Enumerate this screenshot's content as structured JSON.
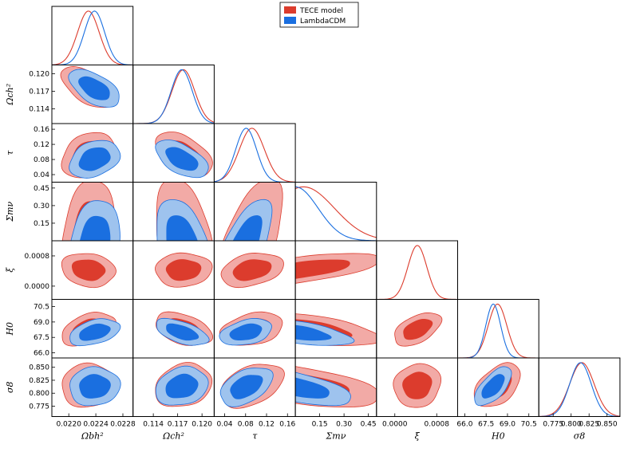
{
  "chart_data": {
    "type": "triangle-plot",
    "legend": {
      "placement": "top-center",
      "entries": [
        {
          "name": "TECE model",
          "color": "#dc3c2d"
        },
        {
          "name": "LambdaCDM",
          "color": "#1a6fe0"
        }
      ]
    },
    "colors": {
      "tece_inner": "#dc3c2d",
      "tece_outer": "#f2aaa6",
      "lcdm_inner": "#1a6fe0",
      "lcdm_outer": "#9ec3ee",
      "tece_line": "#dc3c2d",
      "lcdm_line": "#1a6fe0"
    },
    "parameters": [
      {
        "name": "omega_b",
        "label": "Ωbh²",
        "range": [
          0.02175,
          0.02295
        ],
        "ticks": [
          "0.0220",
          "0.0224",
          "0.0228"
        ],
        "tick_values": [
          0.022,
          0.0224,
          0.0228
        ],
        "tece": {
          "mean": 0.02229,
          "sigma": 0.00016
        },
        "lcdm": {
          "mean": 0.02238,
          "sigma": 0.00015
        }
      },
      {
        "name": "omega_c",
        "label": "Ωch²",
        "range": [
          0.1115,
          0.1215
        ],
        "ticks": [
          "0.114",
          "0.117",
          "0.120"
        ],
        "tick_values": [
          0.114,
          0.117,
          0.12
        ],
        "tece": {
          "mean": 0.1177,
          "sigma": 0.0014
        },
        "lcdm": {
          "mean": 0.1175,
          "sigma": 0.0013
        }
      },
      {
        "name": "tau",
        "label": "τ",
        "range": [
          0.02,
          0.175
        ],
        "ticks": [
          "0.04",
          "0.08",
          "0.12",
          "0.16"
        ],
        "tick_values": [
          0.04,
          0.08,
          0.12,
          0.16
        ],
        "tece": {
          "mean": 0.092,
          "sigma": 0.024
        },
        "lcdm": {
          "mean": 0.081,
          "sigma": 0.02
        }
      },
      {
        "name": "mnu",
        "label": "Σmν",
        "range": [
          0.0,
          0.5
        ],
        "ticks": [
          "0.15",
          "0.30",
          "0.45"
        ],
        "tick_values": [
          0.15,
          0.3,
          0.45
        ],
        "tece": {
          "mean": 0.05,
          "sigma": 0.19
        },
        "lcdm": {
          "mean": 0.0,
          "sigma": 0.14
        }
      },
      {
        "name": "xi",
        "label": "ξ",
        "range": [
          -0.00035,
          0.0012
        ],
        "ticks": [
          "0.0000",
          "0.0008"
        ],
        "tick_values": [
          0.0,
          0.0008
        ],
        "tece": {
          "mean": 0.00043,
          "sigma": 0.00018
        },
        "lcdm": null
      },
      {
        "name": "H0",
        "label": "H0",
        "range": [
          65.5,
          71.2
        ],
        "ticks": [
          "66.0",
          "67.5",
          "69.0",
          "70.5"
        ],
        "tick_values": [
          66.0,
          67.5,
          69.0,
          70.5
        ],
        "tece": {
          "mean": 68.3,
          "sigma": 0.65
        },
        "lcdm": {
          "mean": 68.0,
          "sigma": 0.52
        }
      },
      {
        "name": "sigma8",
        "label": "σ8",
        "range": [
          0.755,
          0.868
        ],
        "ticks": [
          "0.775",
          "0.800",
          "0.825",
          "0.850"
        ],
        "tick_values": [
          0.775,
          0.8,
          0.825,
          0.85
        ],
        "tece": {
          "mean": 0.815,
          "sigma": 0.017
        },
        "lcdm": {
          "mean": 0.813,
          "sigma": 0.015
        }
      }
    ],
    "correlations_tece": {
      "1-0": -0.55,
      "2-0": 0.3,
      "2-1": -0.45,
      "3-0": 0.25,
      "3-1": -0.3,
      "3-2": 0.55,
      "4-0": -0.15,
      "4-1": 0.05,
      "4-2": 0.3,
      "4-3": 0.65,
      "5-0": 0.4,
      "5-1": -0.4,
      "5-2": 0.3,
      "5-3": -0.5,
      "5-4": 0.5,
      "6-0": 0.05,
      "6-1": 0.2,
      "6-2": 0.4,
      "6-3": -0.55,
      "6-4": 0.1,
      "6-5": 0.45
    },
    "correlations_lcdm": {
      "1-0": -0.55,
      "2-0": 0.3,
      "2-1": -0.55,
      "3-0": 0.25,
      "3-1": -0.3,
      "3-2": 0.6,
      "5-0": 0.4,
      "5-1": -0.55,
      "5-2": 0.35,
      "5-3": -0.55,
      "6-0": 0.05,
      "6-1": 0.2,
      "6-2": 0.45,
      "6-3": -0.65,
      "6-5": 0.65
    }
  }
}
